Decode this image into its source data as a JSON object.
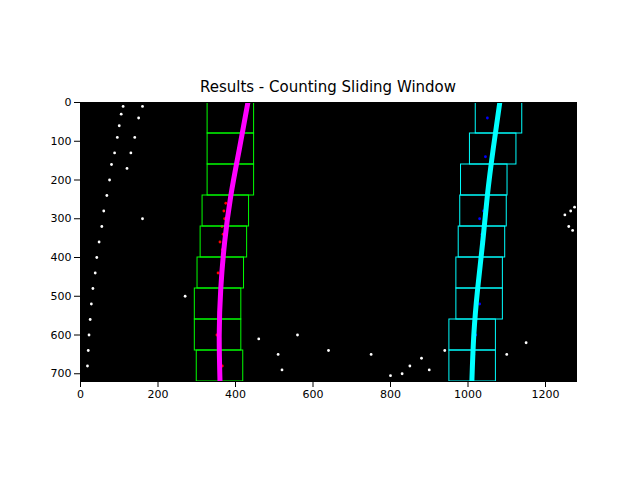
{
  "chart_data": {
    "type": "composite",
    "title": "Results - Counting Sliding Window",
    "xlim": [
      0,
      1280
    ],
    "ylim": [
      720,
      0
    ],
    "xticks": [
      0,
      200,
      400,
      600,
      800,
      1000,
      1200
    ],
    "yticks": [
      0,
      100,
      200,
      300,
      400,
      500,
      600,
      700
    ],
    "grid": false,
    "series": [
      {
        "type": "scatter",
        "color": "#ffffff",
        "x": [
          110,
          105,
          100,
          95,
          88,
          80,
          75,
          68,
          60,
          55,
          48,
          42,
          38,
          32,
          28,
          25,
          22,
          20,
          18,
          160,
          150,
          140,
          130,
          120,
          1250,
          1265,
          1275,
          1260,
          1270,
          850,
          830,
          900,
          640,
          750,
          1100,
          1150,
          520,
          460,
          560,
          270,
          510,
          160,
          880,
          800,
          940
        ],
        "values": [
          10,
          30,
          60,
          90,
          130,
          160,
          200,
          240,
          280,
          320,
          360,
          400,
          440,
          480,
          520,
          560,
          600,
          640,
          680,
          10,
          40,
          90,
          130,
          170,
          290,
          280,
          270,
          320,
          330,
          680,
          700,
          690,
          640,
          650,
          650,
          620,
          690,
          610,
          600,
          500,
          650,
          300,
          660,
          705,
          640
        ]
      },
      {
        "type": "scatter",
        "color": "#ff0000",
        "x": [
          375,
          372,
          368,
          366,
          364,
          362,
          360,
          358,
          357,
          356,
          358,
          360,
          370,
          365,
          360,
          355,
          352,
          366
        ],
        "values": [
          260,
          300,
          340,
          380,
          420,
          460,
          500,
          540,
          580,
          620,
          660,
          700,
          280,
          320,
          360,
          440,
          600,
          680
        ]
      },
      {
        "type": "scatter",
        "color": "#0000ff",
        "x": [
          1040,
          1038,
          1035,
          1032,
          1030,
          1045,
          1050,
          1030,
          1015,
          1010,
          1020,
          1036
        ],
        "values": [
          280,
          320,
          360,
          400,
          300,
          140,
          40,
          520,
          650,
          700,
          600,
          340
        ]
      },
      {
        "type": "rect",
        "color": "#00ff00",
        "x1": [
          300,
          295,
          295,
          302,
          310,
          315,
          328,
          328,
          328
        ],
        "x2": [
          420,
          415,
          415,
          422,
          430,
          435,
          448,
          448,
          448
        ],
        "y1": [
          640,
          560,
          480,
          400,
          320,
          240,
          160,
          80,
          0
        ],
        "y2": [
          720,
          640,
          560,
          480,
          400,
          320,
          240,
          160,
          80
        ]
      },
      {
        "type": "rect",
        "color": "#00ffff",
        "x1": [
          952,
          952,
          970,
          970,
          976,
          980,
          982,
          1005,
          1020
        ],
        "x2": [
          1072,
          1072,
          1090,
          1090,
          1096,
          1100,
          1102,
          1125,
          1140
        ],
        "y1": [
          640,
          560,
          480,
          400,
          320,
          240,
          160,
          80,
          0
        ],
        "y2": [
          720,
          640,
          560,
          480,
          400,
          320,
          240,
          160,
          80
        ]
      },
      {
        "type": "line",
        "color": "#ff00ff",
        "x": [
          360,
          358,
          362,
          372,
          388,
          410,
          432
        ],
        "values": [
          720,
          600,
          480,
          360,
          240,
          120,
          0
        ]
      },
      {
        "type": "line",
        "color": "#00ffff",
        "x": [
          1010,
          1015,
          1025,
          1038,
          1050,
          1065,
          1082
        ],
        "values": [
          720,
          600,
          480,
          360,
          240,
          120,
          0
        ]
      }
    ]
  }
}
